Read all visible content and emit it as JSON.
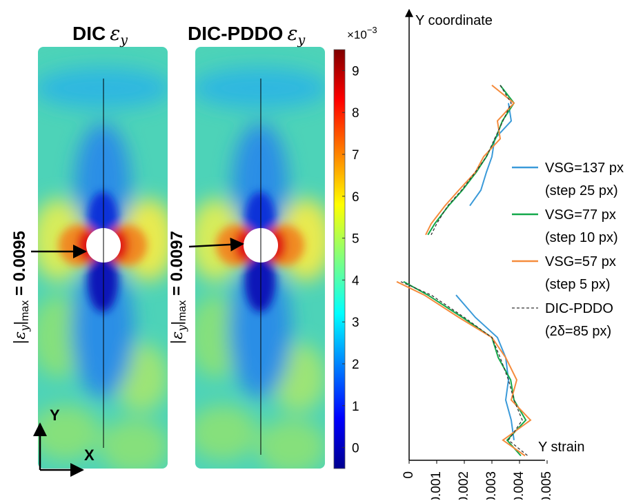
{
  "maps": [
    {
      "title": "DIC",
      "symbol": "ε",
      "sub": "y",
      "max_label": {
        "symbol": "|ε",
        "sub": "y",
        "bar": "|",
        "max": "max",
        "value": " = 0.0095"
      }
    },
    {
      "title": "DIC-PDDO",
      "symbol": "ε",
      "sub": "y",
      "max_label": {
        "symbol": "|ε",
        "sub": "y",
        "bar": "|",
        "max": "max",
        "value": " = 0.0097"
      }
    }
  ],
  "axes_icon": {
    "y": "Y",
    "x": "X"
  },
  "colorbar": {
    "multiplier": "×10",
    "power": "−3",
    "ylim": [
      -0.5,
      9.5
    ],
    "yticks": [
      0,
      1,
      2,
      3,
      4,
      5,
      6,
      7,
      8,
      9
    ]
  },
  "chart_data": {
    "type": "line",
    "y_label": "Y coordinate",
    "x_label": "Y strain",
    "xlim": [
      -0.0006,
      0.0055
    ],
    "xticks": [
      0,
      0.001,
      0.002,
      0.003,
      0.004,
      0.005
    ],
    "ylim": [
      0,
      100
    ],
    "y": [
      84,
      80,
      76,
      72,
      68,
      64.5,
      60.5,
      57,
      53,
      50.5,
      null,
      40,
      37,
      32,
      27.5,
      23,
      18,
      13.5,
      9,
      4.5,
      1
    ],
    "series": [
      {
        "name": "VSG=137 px",
        "step": "(step 25 px)",
        "color": "#3a9ad9",
        "dash": false,
        "values": [
          null,
          0.0036,
          0.0037,
          0.0031,
          0.003,
          0.0028,
          0.0026,
          0.0022,
          null,
          null,
          null,
          null,
          0.0017,
          0.0024,
          0.0032,
          0.0035,
          0.0036,
          0.0035,
          0.0037,
          0.0038,
          null
        ]
      },
      {
        "name": "VSG=77 px",
        "step": "(step 10 px)",
        "color": "#13a84a",
        "dash": false,
        "values": [
          0.0033,
          0.0038,
          0.00338,
          0.00313,
          0.0028,
          0.00243,
          0.00193,
          0.00143,
          0.00093,
          0.00068,
          null,
          -0.0002,
          0.00068,
          0.00193,
          0.003,
          0.00323,
          0.00368,
          0.0038,
          0.00423,
          0.00355,
          0.00405
        ]
      },
      {
        "name": "VSG=57 px",
        "step": "(step 5 px)",
        "color": "#f58b3c",
        "dash": false,
        "values": [
          0.003,
          0.0038,
          0.0032,
          0.0033,
          0.0027,
          0.0024,
          0.0018,
          0.0013,
          0.0008,
          0.0006,
          null,
          -0.00045,
          0.00055,
          0.0018,
          0.003,
          0.0035,
          0.0039,
          0.0037,
          0.0044,
          0.0034,
          0.0042
        ]
      },
      {
        "name": "DIC-PDDO",
        "step": "(2δ=85 px)",
        "color": "#333333",
        "dash": true,
        "values": [
          0.0033,
          0.0037,
          0.0034,
          0.0031,
          0.0028,
          0.0024,
          0.0019,
          0.0014,
          0.001,
          0.0008,
          null,
          -0.0003,
          0.0008,
          0.002,
          0.003,
          0.0033,
          0.0036,
          0.0038,
          0.0041,
          0.0036,
          0.0043
        ]
      }
    ]
  }
}
